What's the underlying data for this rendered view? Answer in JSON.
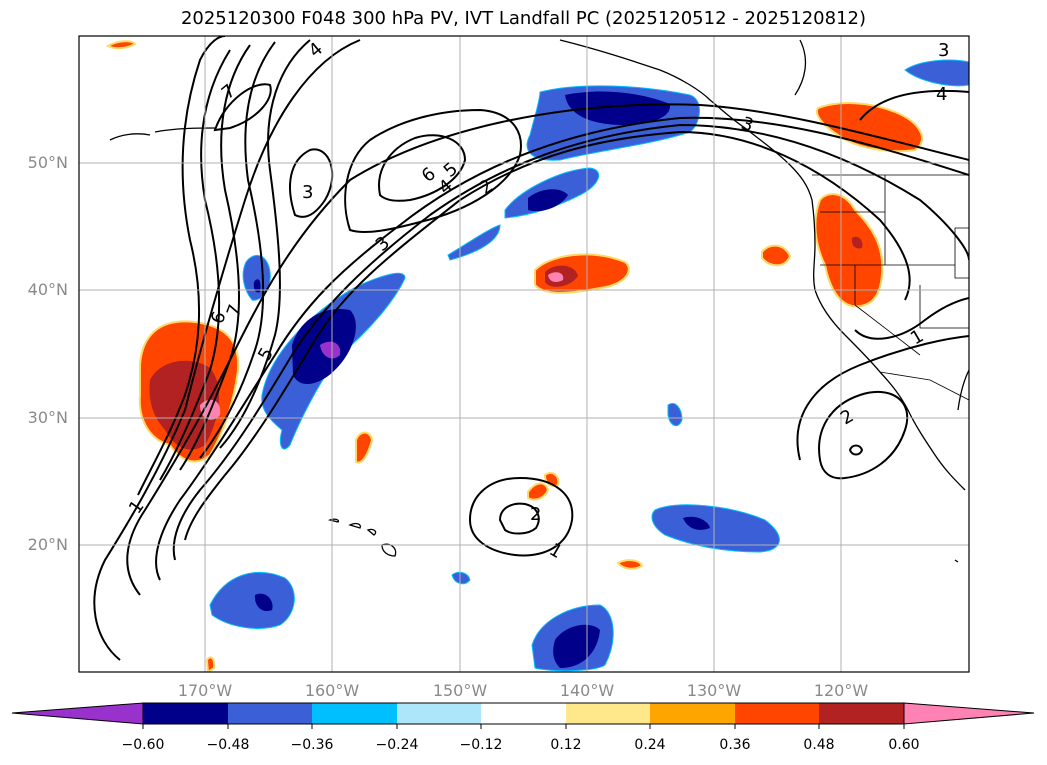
{
  "title": "2025120300 F048 300 hPa PV, IVT Landfall PC (2025120512 - 2025120812)",
  "map": {
    "lat_labels": [
      "50°N",
      "40°N",
      "30°N",
      "20°N"
    ],
    "lon_labels": [
      "170°W",
      "160°W",
      "150°W",
      "140°W",
      "130°W",
      "120°W"
    ],
    "contour_labels": [
      "1",
      "2",
      "3",
      "4",
      "5",
      "6",
      "7",
      "3",
      "2",
      "1",
      "2",
      "3",
      "4",
      "3",
      "4",
      "5",
      "6",
      "7",
      "5",
      "6",
      "1",
      "2",
      "3",
      "4",
      "5",
      "2",
      "1"
    ]
  },
  "colorbar": {
    "ticks": [
      "−0.60",
      "−0.48",
      "−0.36",
      "−0.24",
      "−0.12",
      "0.12",
      "0.24",
      "0.36",
      "0.48",
      "0.60"
    ],
    "colors": [
      "#9932cc",
      "#00008b",
      "#3b5fd6",
      "#00bfff",
      "#ade6fa",
      "#ffffff",
      "#ffe78c",
      "#ffa500",
      "#ff4500",
      "#b22222",
      "#ff82b4"
    ]
  }
}
